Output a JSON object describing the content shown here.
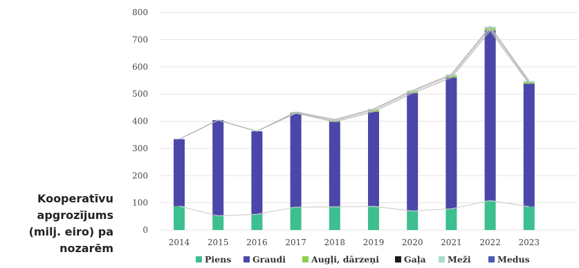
{
  "caption": {
    "line1": "Kooperatīvu",
    "line2": "apgrozījums",
    "line3": "(milj. eiro) pa",
    "line4": "nozarēm"
  },
  "chart_data": {
    "type": "bar",
    "stacked": true,
    "categories": [
      "2014",
      "2015",
      "2016",
      "2017",
      "2018",
      "2019",
      "2020",
      "2021",
      "2022",
      "2023"
    ],
    "ylim": [
      0,
      800
    ],
    "yticks": [
      0,
      100,
      200,
      300,
      400,
      500,
      600,
      700,
      800
    ],
    "grid": true,
    "legend_position": "bottom",
    "series": [
      {
        "name": "Piens",
        "color": "#3dbf8f",
        "values": [
          88,
          52,
          58,
          84,
          85,
          87,
          70,
          78,
          108,
          86
        ]
      },
      {
        "name": "Graudi",
        "color": "#4a47a8",
        "values": [
          246,
          352,
          305,
          345,
          313,
          348,
          433,
          482,
          625,
          452
        ]
      },
      {
        "name": "Augļi, dārzeņi",
        "color": "#8ccf4b",
        "values": [
          0,
          0,
          0,
          3,
          4,
          6,
          6,
          7,
          9,
          5
        ]
      },
      {
        "name": "Gaļa",
        "color": "#1a1a1a",
        "values": [
          0,
          0,
          0,
          0,
          0,
          0,
          0,
          0,
          0,
          0
        ]
      },
      {
        "name": "Meži",
        "color": "#a8dcc6",
        "values": [
          0,
          0,
          0,
          2,
          4,
          4,
          4,
          5,
          6,
          5
        ]
      },
      {
        "name": "Medus",
        "color": "#4a5ab0",
        "values": [
          0,
          0,
          0,
          0,
          0,
          0,
          0,
          0,
          0,
          0
        ]
      }
    ]
  }
}
